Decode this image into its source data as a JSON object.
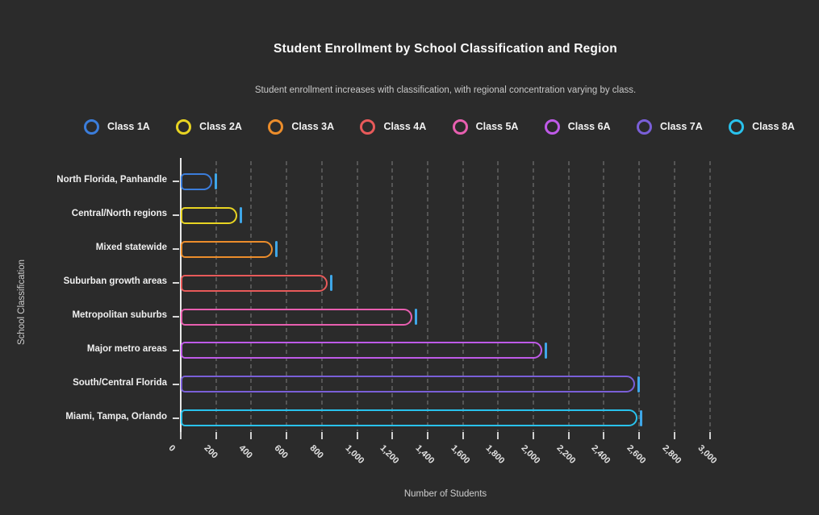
{
  "window": {
    "background": "#2b2b2b"
  },
  "chart_data": {
    "type": "bar",
    "orientation": "horizontal",
    "title": "Student Enrollment by School Classification and Region",
    "subtitle": "Student enrollment increases with classification, with regional concentration varying by class.",
    "xlabel": "Number of Students",
    "ylabel": "School Classification",
    "xlim": [
      0,
      3000
    ],
    "x_tick_values": [
      0,
      200,
      400,
      600,
      800,
      1000,
      1200,
      1400,
      1600,
      1800,
      2000,
      2200,
      2400,
      2600,
      2800,
      3000
    ],
    "x_tick_labels": [
      "0",
      "200",
      "400",
      "600",
      "800",
      "1,000",
      "1,200",
      "1,400",
      "1,600",
      "1,800",
      "2,000",
      "2,200",
      "2,400",
      "2,600",
      "2,800",
      "3,000"
    ],
    "grid": "vertical-dashed",
    "legend_position": "top",
    "bar_style": "hollow-pill-outline-with-end-cap",
    "cap_color": "#3FA7E8",
    "series": [
      {
        "name": "Class 1A",
        "category": "North Florida, Panhandle",
        "value": 180,
        "color": "#3B7DDB"
      },
      {
        "name": "Class 2A",
        "category": "Central/North regions",
        "value": 320,
        "color": "#E8D422"
      },
      {
        "name": "Class 3A",
        "category": "Mixed statewide",
        "value": 520,
        "color": "#EC8D2B"
      },
      {
        "name": "Class 4A",
        "category": "Suburban growth areas",
        "value": 835,
        "color": "#E85A5A"
      },
      {
        "name": "Class 5A",
        "category": "Metropolitan suburbs",
        "value": 1315,
        "color": "#E85FB0"
      },
      {
        "name": "Class 6A",
        "category": "Major metro areas",
        "value": 2050,
        "color": "#BF5AE8"
      },
      {
        "name": "Class 7A",
        "category": "South/Central Florida",
        "value": 2575,
        "color": "#7A5FD8"
      },
      {
        "name": "Class 8A",
        "category": "Miami, Tampa, Orlando",
        "value": 2590,
        "color": "#29C2EC"
      }
    ],
    "colors": {
      "background": "#2b2b2b",
      "axis_line": "#E8E8E8",
      "gridline": "#555555",
      "title_text": "#FAFAFA",
      "subtitle_text": "#C9C9C9",
      "label_text": "#F0F0F0"
    }
  }
}
